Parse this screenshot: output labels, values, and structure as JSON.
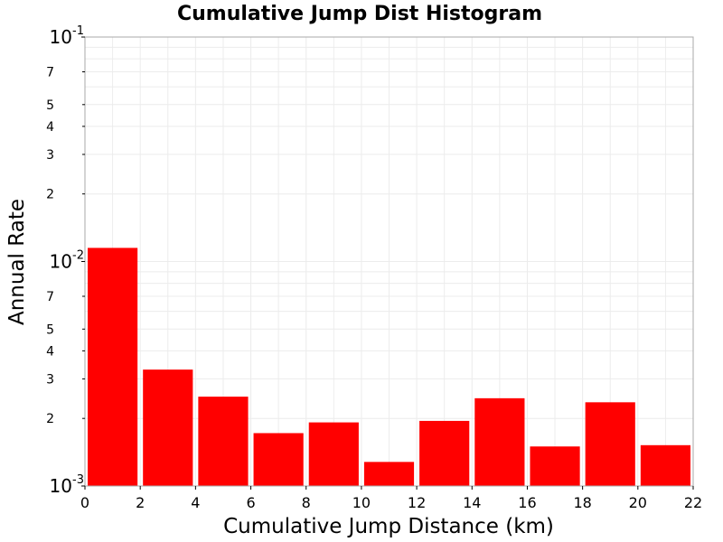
{
  "chart_data": {
    "type": "bar",
    "title": "Cumulative Jump Dist Histogram",
    "xlabel": "Cumulative Jump Distance (km)",
    "ylabel": "Annual Rate",
    "xlim": [
      0,
      22
    ],
    "ylim": [
      0.001,
      0.1
    ],
    "yscale": "log",
    "grid": true,
    "bar_color": "#ff0000",
    "x_ticks": [
      0,
      2,
      4,
      6,
      8,
      10,
      12,
      14,
      16,
      18,
      20,
      22
    ],
    "y_decades": [
      {
        "base": "10",
        "exp": "-3",
        "value": 0.001
      },
      {
        "base": "10",
        "exp": "-2",
        "value": 0.01
      },
      {
        "base": "10",
        "exp": "-1",
        "value": 0.1
      }
    ],
    "y_minor_labels": [
      {
        "label": "2",
        "value": 0.002
      },
      {
        "label": "3",
        "value": 0.003
      },
      {
        "label": "4",
        "value": 0.004
      },
      {
        "label": "5",
        "value": 0.005
      },
      {
        "label": "7",
        "value": 0.007
      },
      {
        "label": "2",
        "value": 0.02
      },
      {
        "label": "3",
        "value": 0.03
      },
      {
        "label": "4",
        "value": 0.04
      },
      {
        "label": "5",
        "value": 0.05
      },
      {
        "label": "7",
        "value": 0.07
      }
    ],
    "bins": [
      {
        "x0": 0,
        "x1": 2,
        "value": 0.0115
      },
      {
        "x0": 2,
        "x1": 4,
        "value": 0.0033
      },
      {
        "x0": 4,
        "x1": 6,
        "value": 0.0025
      },
      {
        "x0": 6,
        "x1": 8,
        "value": 0.00172
      },
      {
        "x0": 8,
        "x1": 10,
        "value": 0.00192
      },
      {
        "x0": 10,
        "x1": 12,
        "value": 0.00128
      },
      {
        "x0": 12,
        "x1": 14,
        "value": 0.00195
      },
      {
        "x0": 14,
        "x1": 16,
        "value": 0.00246
      },
      {
        "x0": 16,
        "x1": 18,
        "value": 0.0015
      },
      {
        "x0": 18,
        "x1": 20,
        "value": 0.00236
      },
      {
        "x0": 20,
        "x1": 22,
        "value": 0.00152
      }
    ]
  }
}
